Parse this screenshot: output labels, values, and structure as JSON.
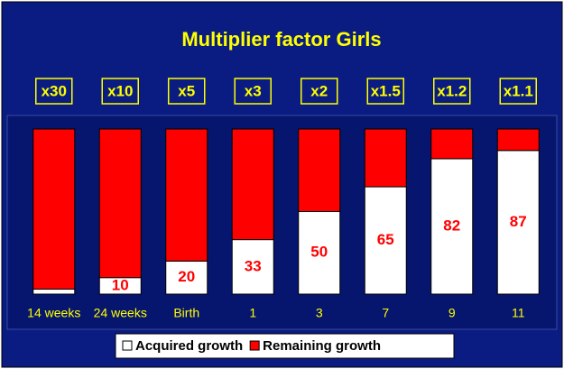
{
  "chart_data": {
    "type": "stacked_bar",
    "title": "Multiplier factor Girls",
    "multipliers": [
      "x30",
      "x10",
      "x5",
      "x3",
      "x2",
      "x1.5",
      "x1.2",
      "x1.1"
    ],
    "categories": [
      "14 weeks",
      "24 weeks",
      "Birth",
      "1",
      "3",
      "7",
      "9",
      "11"
    ],
    "series": [
      {
        "name": "Acquired growth",
        "color": "#ffffff",
        "values": [
          3,
          10,
          20,
          33,
          50,
          65,
          82,
          87
        ],
        "value_labels": [
          null,
          "10",
          "20",
          "33",
          "50",
          "65",
          "82",
          "87"
        ]
      },
      {
        "name": "Remaining growth",
        "color": "#ff0000",
        "values": [
          97,
          90,
          80,
          67,
          50,
          35,
          18,
          13
        ]
      }
    ],
    "ylim": [
      0,
      100
    ],
    "legend": "bottom"
  }
}
